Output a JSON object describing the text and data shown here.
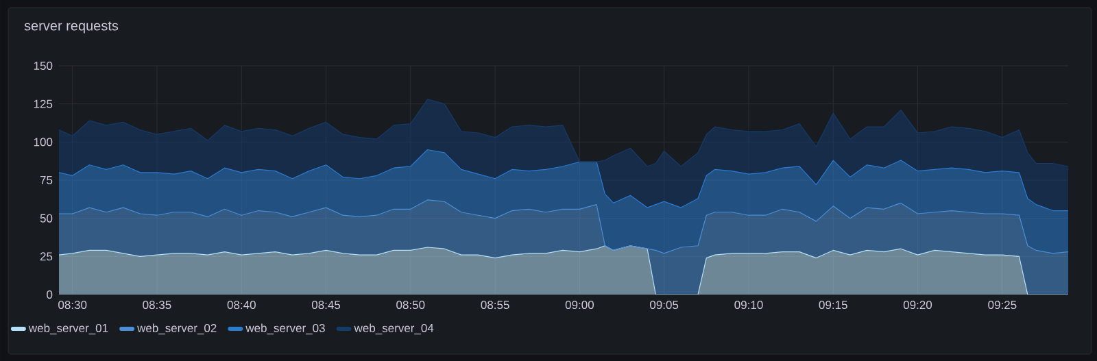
{
  "chart_data": {
    "type": "area",
    "title": "server requests",
    "stacked": true,
    "grid": true,
    "legend": "bottom",
    "xlim": [
      8.4867,
      9.4817
    ],
    "ylim": [
      0,
      150
    ],
    "xticks": [
      {
        "value": 8.5,
        "label": "08:30"
      },
      {
        "value": 8.5833,
        "label": "08:35"
      },
      {
        "value": 8.6667,
        "label": "08:40"
      },
      {
        "value": 8.75,
        "label": "08:45"
      },
      {
        "value": 8.8333,
        "label": "08:50"
      },
      {
        "value": 8.9167,
        "label": "08:55"
      },
      {
        "value": 9.0,
        "label": "09:00"
      },
      {
        "value": 9.0833,
        "label": "09:05"
      },
      {
        "value": 9.1667,
        "label": "09:10"
      },
      {
        "value": 9.25,
        "label": "09:15"
      },
      {
        "value": 9.3333,
        "label": "09:20"
      },
      {
        "value": 9.4167,
        "label": "09:25"
      }
    ],
    "yticks": [
      0,
      25,
      50,
      75,
      100,
      125,
      150
    ],
    "x": [
      8.4867,
      8.5,
      8.5167,
      8.5333,
      8.55,
      8.5667,
      8.5833,
      8.6,
      8.6167,
      8.6333,
      8.65,
      8.6667,
      8.6833,
      8.7,
      8.7167,
      8.7333,
      8.75,
      8.7667,
      8.7833,
      8.8,
      8.8167,
      8.8333,
      8.85,
      8.8667,
      8.8833,
      8.9,
      8.9167,
      8.9333,
      8.95,
      8.9667,
      8.9833,
      9.0,
      9.0167,
      9.025,
      9.0333,
      9.05,
      9.0667,
      9.075,
      9.0833,
      9.1,
      9.1167,
      9.125,
      9.1333,
      9.15,
      9.1667,
      9.1833,
      9.2,
      9.2167,
      9.2333,
      9.25,
      9.2667,
      9.2833,
      9.3,
      9.3167,
      9.3333,
      9.35,
      9.3667,
      9.3833,
      9.4,
      9.4167,
      9.4333,
      9.4417,
      9.45,
      9.4667,
      9.4817
    ],
    "series": [
      {
        "name": "web_server_01",
        "color": "#b4e0f8",
        "values": [
          26,
          27,
          29,
          29,
          27,
          25,
          26,
          27,
          27,
          26,
          28,
          26,
          27,
          28,
          26,
          27,
          29,
          27,
          26,
          26,
          29,
          29,
          31,
          30,
          26,
          26,
          24,
          26,
          27,
          27,
          29,
          28,
          30,
          32,
          29,
          32,
          30,
          0,
          0,
          0,
          0,
          24,
          26,
          27,
          27,
          27,
          28,
          28,
          24,
          29,
          26,
          29,
          28,
          30,
          26,
          29,
          28,
          27,
          26,
          26,
          25,
          0,
          0,
          0,
          0
        ]
      },
      {
        "name": "web_server_02",
        "color": "#4d8fd6",
        "values": [
          27,
          26,
          28,
          25,
          30,
          28,
          26,
          27,
          27,
          25,
          28,
          26,
          28,
          26,
          25,
          27,
          28,
          25,
          25,
          26,
          27,
          27,
          31,
          31,
          28,
          26,
          26,
          29,
          29,
          27,
          27,
          28,
          29,
          0,
          0,
          0,
          0,
          29,
          27,
          31,
          32,
          28,
          28,
          27,
          25,
          25,
          28,
          26,
          24,
          29,
          24,
          28,
          28,
          30,
          27,
          25,
          27,
          27,
          27,
          27,
          27,
          32,
          29,
          27,
          28
        ]
      },
      {
        "name": "web_server_03",
        "color": "#2a7bd1",
        "values": [
          27,
          25,
          28,
          28,
          28,
          27,
          28,
          25,
          27,
          25,
          27,
          28,
          27,
          27,
          25,
          27,
          28,
          25,
          25,
          26,
          27,
          28,
          33,
          32,
          28,
          27,
          26,
          27,
          25,
          28,
          28,
          31,
          28,
          34,
          31,
          33,
          27,
          30,
          34,
          26,
          31,
          26,
          28,
          27,
          27,
          28,
          27,
          30,
          24,
          30,
          27,
          28,
          27,
          28,
          28,
          28,
          28,
          28,
          27,
          28,
          28,
          31,
          30,
          28,
          27
        ]
      },
      {
        "name": "web_server_04",
        "color": "#153b6b",
        "values": [
          28,
          26,
          29,
          29,
          28,
          28,
          25,
          28,
          28,
          25,
          28,
          27,
          27,
          27,
          28,
          28,
          28,
          28,
          27,
          24,
          28,
          28,
          33,
          32,
          25,
          27,
          27,
          28,
          30,
          28,
          27,
          0,
          0,
          22,
          31,
          31,
          27,
          27,
          33,
          27,
          30,
          27,
          28,
          27,
          28,
          27,
          25,
          28,
          25,
          31,
          25,
          25,
          27,
          33,
          25,
          25,
          27,
          27,
          27,
          22,
          28,
          30,
          27,
          31,
          29
        ]
      }
    ]
  }
}
